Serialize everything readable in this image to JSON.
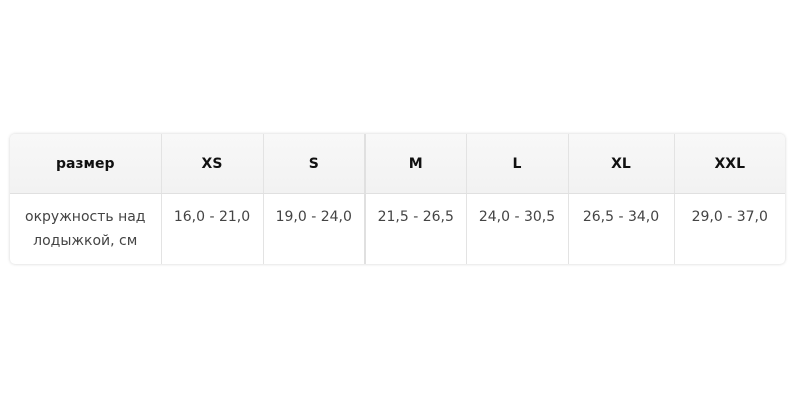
{
  "table": {
    "headers": [
      "размер",
      "XS",
      "S",
      "M",
      "L",
      "XL",
      "XXL"
    ],
    "row": [
      "окружность над лодыжкой, см",
      "16,0 - 21,0",
      "19,0 - 24,0",
      "21,5 - 26,5",
      "24,0 - 30,5",
      "26,5 - 34,0",
      "29,0 - 37,0"
    ]
  }
}
